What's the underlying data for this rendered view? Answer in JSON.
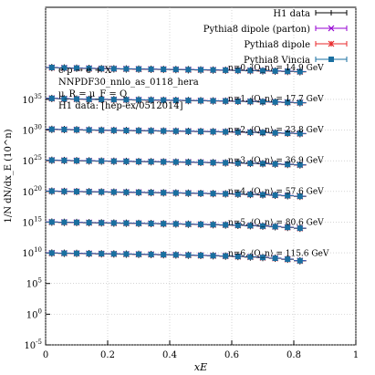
{
  "chart_data": {
    "type": "scatter",
    "xlabel": "x_E",
    "ylabel": "1/N dN/dx_E (10^n)",
    "yscale": "log",
    "ylim": [
      1e-05,
      1e+50
    ],
    "xlim": [
      0,
      1.0
    ],
    "grid": true,
    "legend_position": "top-right",
    "annotation": [
      "e p → e + X",
      "NNPDF30_nnlo_as_0118_hera",
      "μ_R = μ_F = Q",
      "H1 data: [hep-ex/0512014]"
    ],
    "y_tick_labels": [
      "10^-5",
      "10^0",
      "10^5",
      "10^10",
      "10^15",
      "10^20",
      "10^25",
      "10^30",
      "10^35"
    ],
    "x_tick_labels": [
      "0",
      "0.2",
      "0.4",
      "0.6",
      "0.8",
      "1"
    ],
    "series": [
      {
        "name": "H1 data",
        "color": "#000000",
        "marker": "plus"
      },
      {
        "name": "Pythia8 dipole (parton)",
        "color": "#9400d3",
        "marker": "x"
      },
      {
        "name": "Pythia8 dipole",
        "color": "#e8292b",
        "marker": "star"
      },
      {
        "name": "Pythia8 Vincia",
        "color": "#1a6fa0",
        "marker": "square"
      }
    ],
    "bins": [
      {
        "label": "n=0, ⟨Q_n⟩ = 14.9 GeV",
        "offset_exp": 40,
        "x": [
          0.02,
          0.06,
          0.1,
          0.14,
          0.18,
          0.22,
          0.26,
          0.3,
          0.34,
          0.38,
          0.42,
          0.46,
          0.5,
          0.54,
          0.58,
          0.62,
          0.66,
          0.7,
          0.74,
          0.78,
          0.82
        ],
        "y": [
          1.5e+40,
          1.3e+40,
          1.2e+40,
          1.1e+40,
          1e+40,
          9.5e+39,
          9e+39,
          8.5e+39,
          8e+39,
          7.6e+39,
          7.2e+39,
          6.8e+39,
          6.4e+39,
          6e+39,
          5.6e+39,
          5.2e+39,
          4.8e+39,
          4.4e+39,
          4e+39,
          3.6e+39,
          3.2e+39
        ]
      },
      {
        "label": "n=1, ⟨Q_n⟩ = 17.7 GeV",
        "offset_exp": 35,
        "x": [
          0.02,
          0.06,
          0.1,
          0.14,
          0.18,
          0.22,
          0.26,
          0.3,
          0.34,
          0.38,
          0.42,
          0.46,
          0.5,
          0.54,
          0.58,
          0.62,
          0.66,
          0.7,
          0.74,
          0.78,
          0.82
        ],
        "y": [
          1.4e+35,
          1.2e+35,
          1.1e+35,
          1e+35,
          9.6e+34,
          9e+34,
          8.5e+34,
          8e+34,
          7.6e+34,
          7.2e+34,
          6.8e+34,
          6.4e+34,
          6e+34,
          5.6e+34,
          5.2e+34,
          4.8e+34,
          4.4e+34,
          4e+34,
          3.6e+34,
          3.2e+34,
          2.8e+34
        ]
      },
      {
        "label": "n=2, ⟨Q_n⟩ = 23.8 GeV",
        "offset_exp": 30,
        "x": [
          0.02,
          0.06,
          0.1,
          0.14,
          0.18,
          0.22,
          0.26,
          0.3,
          0.34,
          0.38,
          0.42,
          0.46,
          0.5,
          0.54,
          0.58,
          0.62,
          0.66,
          0.7,
          0.74,
          0.78,
          0.82
        ],
        "y": [
          1.3e+30,
          1.2e+30,
          1.1e+30,
          1e+30,
          9.3e+29,
          8.8e+29,
          8.3e+29,
          7.8e+29,
          7.4e+29,
          7e+29,
          6.6e+29,
          6.2e+29,
          5.8e+29,
          5.4e+29,
          5e+29,
          4.6e+29,
          4.2e+29,
          3.8e+29,
          3.4e+29,
          3e+29,
          2.6e+29
        ]
      },
      {
        "label": "n=3, ⟨Q_n⟩ = 36.9 GeV",
        "offset_exp": 25,
        "x": [
          0.02,
          0.06,
          0.1,
          0.14,
          0.18,
          0.22,
          0.26,
          0.3,
          0.34,
          0.38,
          0.42,
          0.46,
          0.5,
          0.54,
          0.58,
          0.62,
          0.66,
          0.7,
          0.74,
          0.78,
          0.82
        ],
        "y": [
          1.2e+25,
          1.1e+25,
          1e+25,
          9.4e+24,
          8.8e+24,
          8.3e+24,
          7.8e+24,
          7.3e+24,
          6.9e+24,
          6.5e+24,
          6.1e+24,
          5.7e+24,
          5.3e+24,
          4.9e+24,
          4.5e+24,
          4.1e+24,
          3.7e+24,
          3.3e+24,
          2.9e+24,
          2.5e+24,
          2.1e+24
        ]
      },
      {
        "label": "n=4, ⟨Q_n⟩ = 57.6 GeV",
        "offset_exp": 20,
        "x": [
          0.02,
          0.06,
          0.1,
          0.14,
          0.18,
          0.22,
          0.26,
          0.3,
          0.34,
          0.38,
          0.42,
          0.46,
          0.5,
          0.54,
          0.58,
          0.62,
          0.66,
          0.7,
          0.74,
          0.78,
          0.82
        ],
        "y": [
          1.1e+20,
          1e+20,
          9.3e+19,
          8.7e+19,
          8.2e+19,
          7.7e+19,
          7.2e+19,
          6.8e+19,
          6.4e+19,
          6e+19,
          5.6e+19,
          5.2e+19,
          4.8e+19,
          4.4e+19,
          4e+19,
          3.6e+19,
          3.2e+19,
          2.8e+19,
          2.4e+19,
          2e+19,
          1.6e+19
        ]
      },
      {
        "label": "n=5, ⟨Q_n⟩ = 80.6 GeV",
        "offset_exp": 15,
        "x": [
          0.02,
          0.06,
          0.1,
          0.14,
          0.18,
          0.22,
          0.26,
          0.3,
          0.34,
          0.38,
          0.42,
          0.46,
          0.5,
          0.54,
          0.58,
          0.62,
          0.66,
          0.7,
          0.74,
          0.78,
          0.82
        ],
        "y": [
          1000000000000000.0,
          920000000000000.0,
          860000000000000.0,
          800000000000000.0,
          750000000000000.0,
          700000000000000.0,
          660000000000000.0,
          620000000000000.0,
          580000000000000.0,
          540000000000000.0,
          500000000000000.0,
          460000000000000.0,
          420000000000000.0,
          380000000000000.0,
          340000000000000.0,
          300000000000000.0,
          260000000000000.0,
          220000000000000.0,
          180000000000000.0,
          140000000000000.0,
          100000000000000.0
        ]
      },
      {
        "label": "n=6, ⟨Q_n⟩ = 115.6 GeV",
        "offset_exp": 10,
        "x": [
          0.02,
          0.06,
          0.1,
          0.14,
          0.18,
          0.22,
          0.26,
          0.3,
          0.34,
          0.38,
          0.42,
          0.46,
          0.5,
          0.54,
          0.58,
          0.62,
          0.66,
          0.7,
          0.74,
          0.78,
          0.82
        ],
        "y": [
          9000000000.0,
          8400000000.0,
          7900000000.0,
          7400000000.0,
          6900000000.0,
          6500000000.0,
          6100000000.0,
          5700000000.0,
          5300000000.0,
          4900000000.0,
          4500000000.0,
          4100000000.0,
          3700000000.0,
          3300000000.0,
          2900000000.0,
          2500000000.0,
          2100000000.0,
          1700000000.0,
          1300000000.0,
          900000000.0,
          500000000.0
        ]
      }
    ]
  }
}
